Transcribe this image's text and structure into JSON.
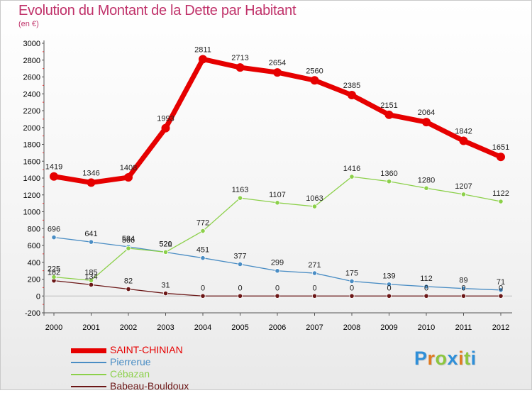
{
  "title": "Evolution du Montant de la Dette par Habitant",
  "subtitle": "(en €)",
  "logo": {
    "text": "Proxiti",
    "colors": [
      "#2f8fd8",
      "#e07b22",
      "#8cc63f",
      "#2f8fd8",
      "#e07b22",
      "#8cc63f",
      "#2f8fd8"
    ]
  },
  "chart_data": {
    "type": "line",
    "x": [
      "2000",
      "2001",
      "2002",
      "2003",
      "2004",
      "2005",
      "2006",
      "2007",
      "2008",
      "2009",
      "2010",
      "2011",
      "2012"
    ],
    "ylim": [
      -200,
      3000
    ],
    "yticks": [
      -200,
      0,
      200,
      400,
      600,
      800,
      1000,
      1200,
      1400,
      1600,
      1800,
      2000,
      2200,
      2400,
      2600,
      2800,
      3000
    ],
    "grid": false,
    "legend_position": "bottom-left",
    "series": [
      {
        "name": "SAINT-CHINIAN",
        "color": "#e60000",
        "values": [
          1419,
          1346,
          1408,
          1993,
          2811,
          2713,
          2654,
          2560,
          2385,
          2151,
          2064,
          1842,
          1651
        ],
        "labels": [
          "1419",
          "1346",
          "1408",
          "1993",
          "2811",
          "2713",
          "2654",
          "2560",
          "2385",
          "2151",
          "2064",
          "1842",
          "1651"
        ]
      },
      {
        "name": "Pierrerue",
        "color": "#4a8dc4",
        "values": [
          696,
          641,
          584,
          520,
          451,
          377,
          299,
          271,
          175,
          139,
          112,
          89,
          71
        ],
        "labels": [
          "696",
          "641",
          "584",
          "520",
          "451",
          "377",
          "299",
          "271",
          "175",
          "139",
          "112",
          "89",
          "71"
        ]
      },
      {
        "name": "Cébazan",
        "color": "#8cd04a",
        "values": [
          225,
          185,
          566,
          521,
          772,
          1163,
          1107,
          1063,
          1416,
          1360,
          1280,
          1207,
          1122
        ],
        "labels": [
          "225",
          "185",
          "566",
          "521",
          "772",
          "1163",
          "1107",
          "1063",
          "1416",
          "1360",
          "1280",
          "1207",
          "1122"
        ]
      },
      {
        "name": "Babeau-Bouldoux",
        "color": "#6b1616",
        "values": [
          182,
          134,
          82,
          31,
          0,
          0,
          0,
          0,
          0,
          0,
          0,
          0,
          0
        ],
        "labels": [
          "182",
          "134",
          "82",
          "31",
          "0",
          "0",
          "0",
          "0",
          "0",
          "0",
          "0",
          "0",
          "0"
        ]
      }
    ]
  }
}
